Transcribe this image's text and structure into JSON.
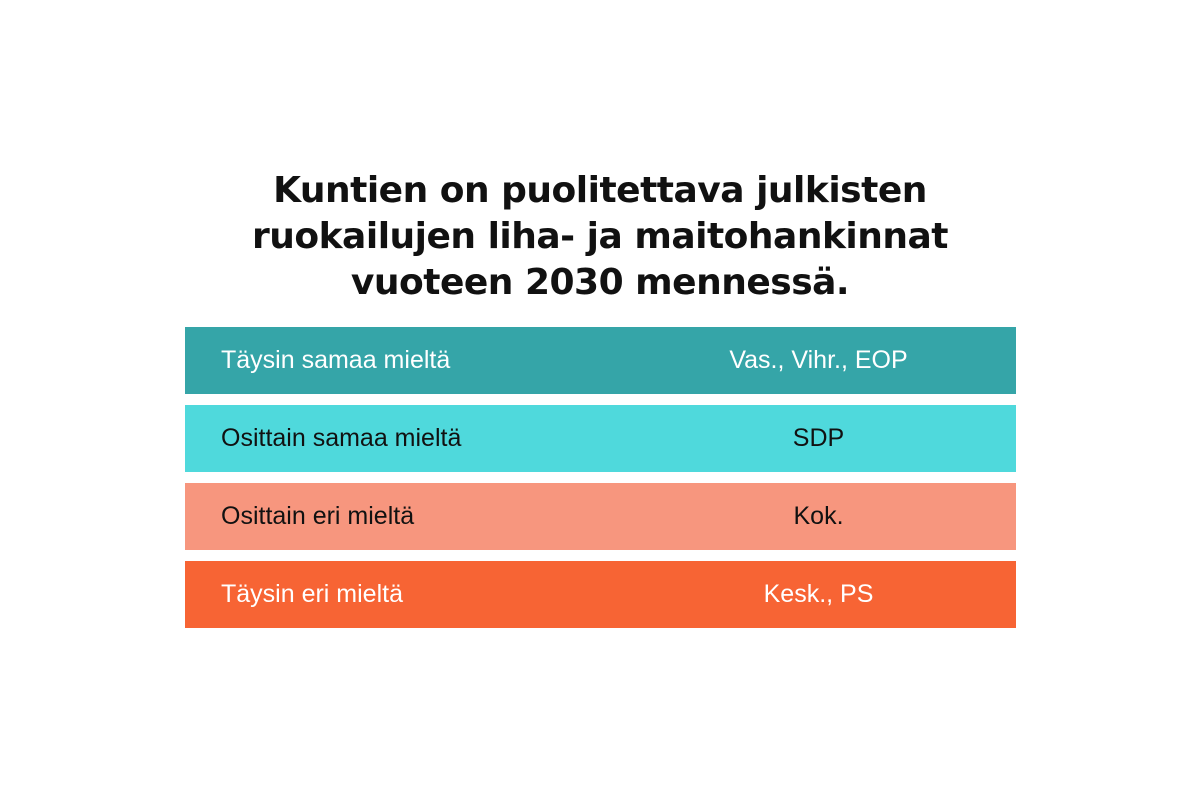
{
  "chart_data": {
    "type": "table",
    "title_lines": [
      "Kuntien on puolitettava julkisten",
      "ruokailujen liha- ja maitohankinnat",
      "vuoteen 2030 mennessä."
    ],
    "rows": [
      {
        "label": "Täysin samaa mieltä",
        "parties": "Vas., Vihr., EOP",
        "color": "#35a5a8",
        "text_color": "#ffffff"
      },
      {
        "label": "Osittain samaa mieltä",
        "parties": "SDP",
        "color": "#4fd9dc",
        "text_color": "#111111"
      },
      {
        "label": "Osittain eri mieltä",
        "parties": "Kok.",
        "color": "#f7967e",
        "text_color": "#111111"
      },
      {
        "label": "Täysin eri mieltä",
        "parties": "Kesk., PS",
        "color": "#f76434",
        "text_color": "#ffffff"
      }
    ]
  }
}
